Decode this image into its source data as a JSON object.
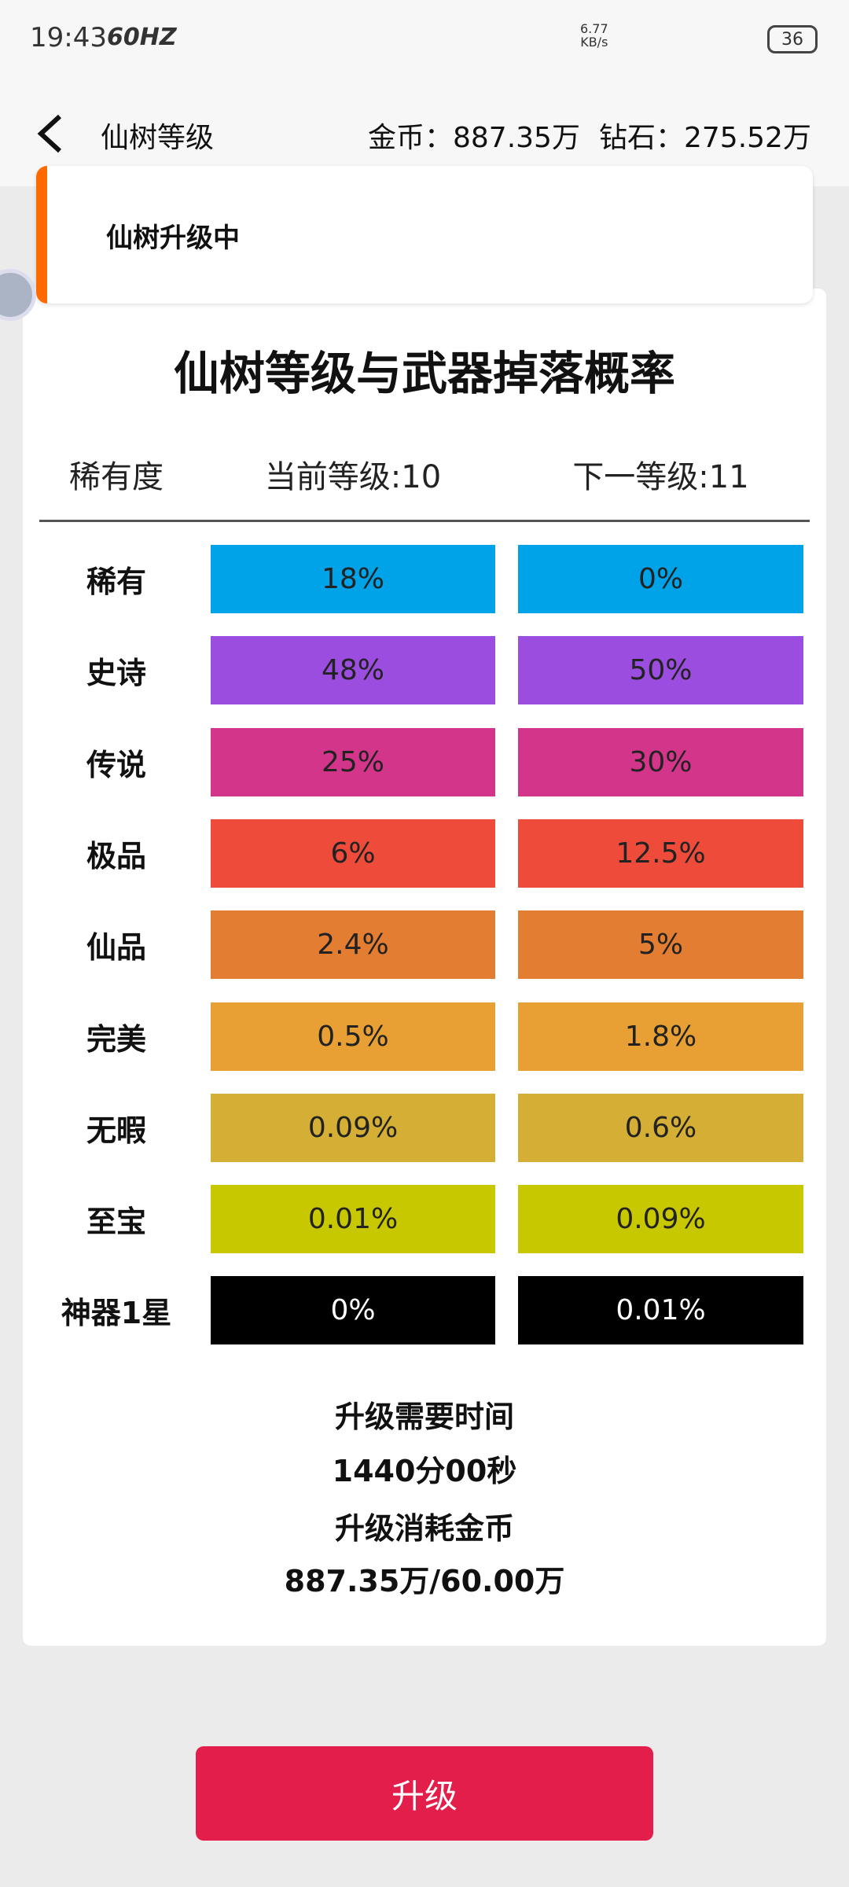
{
  "status_bar": {
    "time": "19:43",
    "refresh_rate": "60HZ",
    "net_speed": "6.77",
    "net_unit": "KB/s",
    "battery": "36"
  },
  "header": {
    "title": "仙树等级",
    "gold": "金币：887.35万",
    "diamond": "钻石：275.52万"
  },
  "banner": {
    "text": "仙树升级中"
  },
  "card": {
    "title": "仙树等级与武器掉落概率",
    "table": {
      "columns": [
        "稀有度",
        "当前等级:10",
        "下一等级:11"
      ],
      "rows": [
        {
          "name": "稀有",
          "current": "18%",
          "next": "0%",
          "color": "#00a2e8"
        },
        {
          "name": "史诗",
          "current": "48%",
          "next": "50%",
          "color": "#9b4de0"
        },
        {
          "name": "传说",
          "current": "25%",
          "next": "30%",
          "color": "#d2358a"
        },
        {
          "name": "极品",
          "current": "6%",
          "next": "12.5%",
          "color": "#ee4b3b"
        },
        {
          "name": "仙品",
          "current": "2.4%",
          "next": "5%",
          "color": "#e37d32"
        },
        {
          "name": "完美",
          "current": "0.5%",
          "next": "1.8%",
          "color": "#e8a035"
        },
        {
          "name": "无暇",
          "current": "0.09%",
          "next": "0.6%",
          "color": "#d4ae35"
        },
        {
          "name": "至宝",
          "current": "0.01%",
          "next": "0.09%",
          "color": "#c8c800"
        },
        {
          "name": "神器1星",
          "current": "0%",
          "next": "0.01%",
          "color": "#000000"
        }
      ]
    },
    "footer": [
      "升级需要时间",
      "1440分00秒",
      "升级消耗金币",
      "887.35万/60.00万"
    ]
  },
  "button": {
    "label": "升级"
  }
}
